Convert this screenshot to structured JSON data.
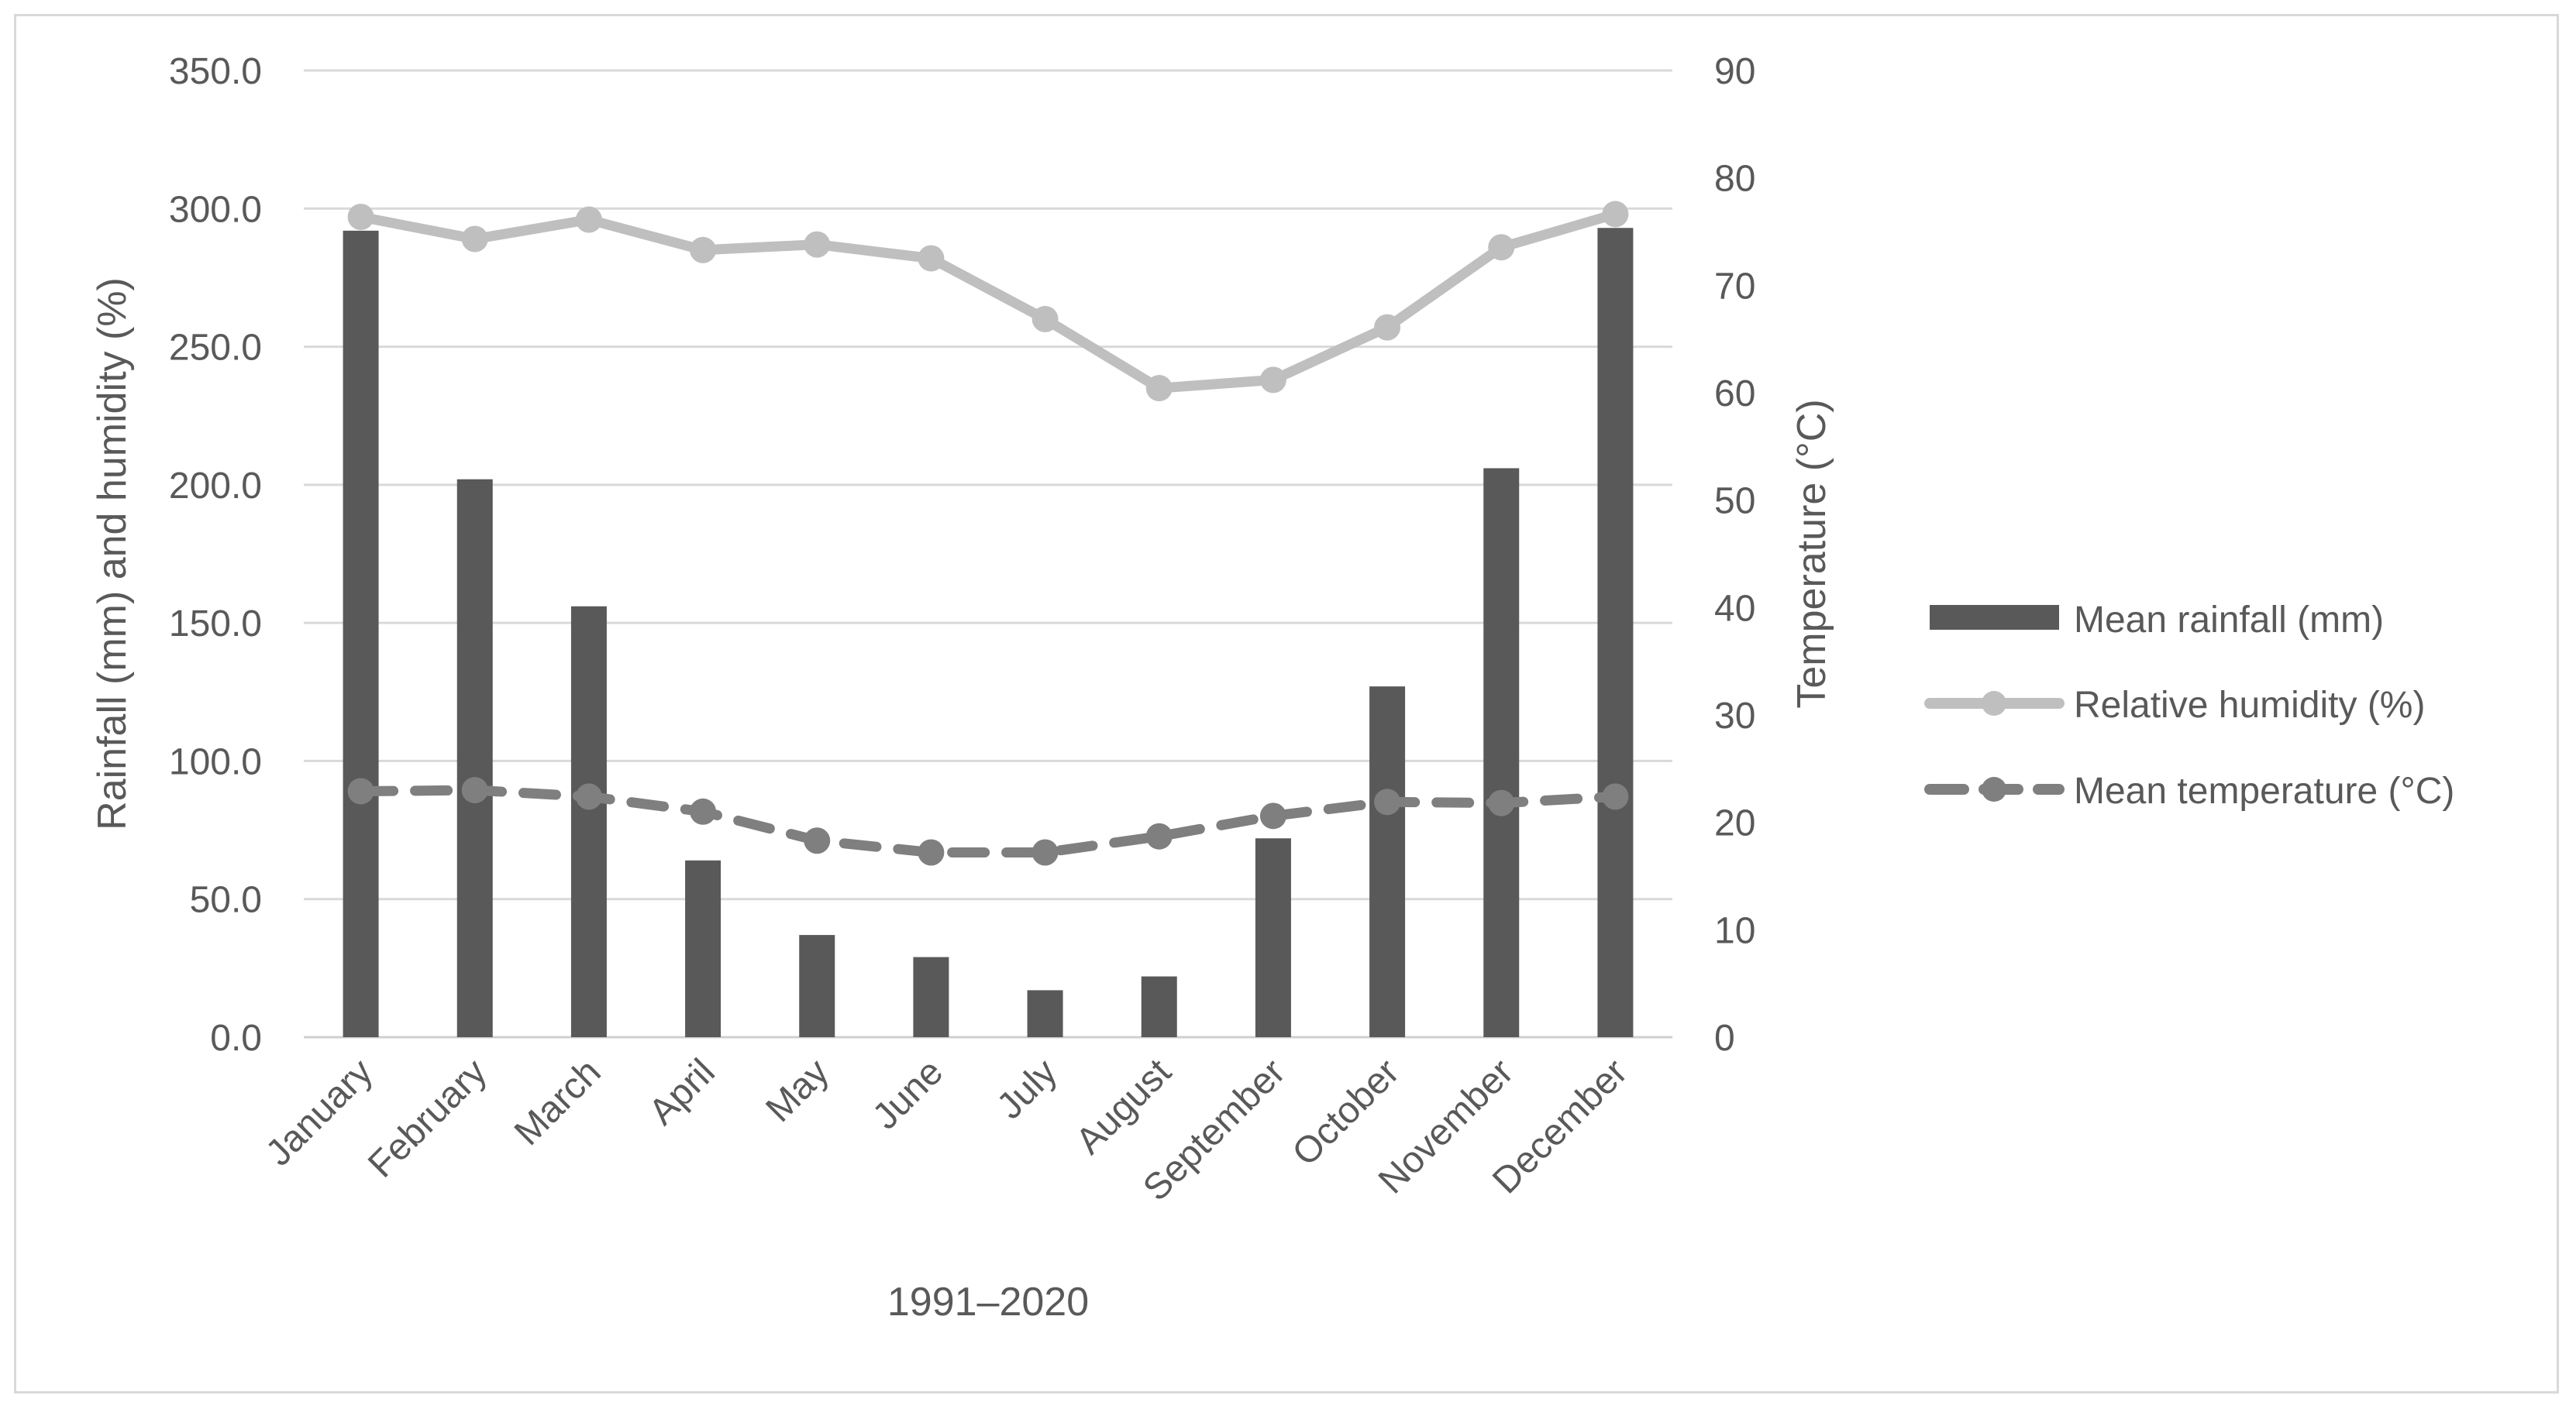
{
  "chart_data": {
    "type": "bar",
    "title": "",
    "xlabel": "1991–2020",
    "ylabel": "Rainfall (mm) and humidity (%)",
    "y2label": "Temperature (°C)",
    "ylim": [
      0,
      350
    ],
    "y2lim": [
      0,
      90
    ],
    "yticks": [
      "0.0",
      "50.0",
      "100.0",
      "150.0",
      "200.0",
      "250.0",
      "300.0",
      "350.0"
    ],
    "y2ticks": [
      "0",
      "10",
      "20",
      "30",
      "40",
      "50",
      "60",
      "70",
      "80",
      "90"
    ],
    "grid": true,
    "legend_position": "right",
    "categories": [
      "January",
      "February",
      "March",
      "April",
      "May",
      "June",
      "July",
      "August",
      "September",
      "October",
      "November",
      "December"
    ],
    "series": [
      {
        "name": "Mean rainfall (mm)",
        "type": "bar",
        "axis": "left",
        "color": "#595959",
        "values": [
          292,
          202,
          156,
          64,
          37,
          29,
          17,
          22,
          72,
          127,
          206,
          293
        ]
      },
      {
        "name": "Relative humidity (%)",
        "type": "line",
        "axis": "left",
        "color": "#bfbfbf",
        "style": "solid",
        "values": [
          297,
          289,
          296,
          285,
          287,
          282,
          260,
          235,
          238,
          257,
          286,
          298
        ]
      },
      {
        "name": "Mean temperature (°C)",
        "type": "line",
        "axis": "right",
        "color": "#7f7f7f",
        "style": "dashed",
        "values": [
          22.9,
          23.0,
          22.4,
          21.0,
          18.3,
          17.2,
          17.2,
          18.7,
          20.6,
          21.9,
          21.8,
          22.4
        ]
      }
    ]
  }
}
